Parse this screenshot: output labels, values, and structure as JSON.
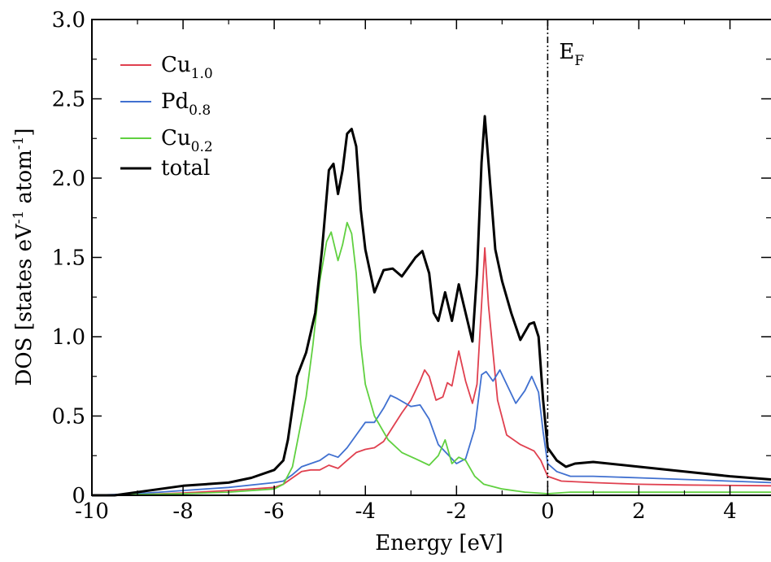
{
  "chart_data": {
    "type": "line",
    "xlabel": "Energy [eV]",
    "ylabel": {
      "main": "DOS [states eV",
      "sup1": "-1",
      "mid": " atom",
      "sup2": "-1",
      "end": "]"
    },
    "xlim": [
      -10,
      4.9
    ],
    "ylim": [
      0,
      3.0
    ],
    "x_ticks": [
      -10,
      -8,
      -6,
      -4,
      -2,
      0,
      2,
      4
    ],
    "x_tick_labels": [
      "-10",
      "-8",
      "-6",
      "-4",
      "-2",
      "0",
      "2",
      "4"
    ],
    "y_ticks": [
      0,
      0.5,
      1.0,
      1.5,
      2.0,
      2.5,
      3.0
    ],
    "y_tick_labels": [
      "0",
      "0.5",
      "1.0",
      "1.5",
      "2.0",
      "2.5",
      "3.0"
    ],
    "legend_position": "top-left",
    "fermi_level": {
      "x": 0,
      "label_main": "E",
      "label_sub": "F"
    },
    "series": [
      {
        "name": "Cu1.0",
        "label_main": "Cu",
        "label_sub": "1.0",
        "color": "#e0404f",
        "points": [
          [
            -10,
            0
          ],
          [
            -9,
            0.005
          ],
          [
            -8,
            0.015
          ],
          [
            -7,
            0.03
          ],
          [
            -6,
            0.05
          ],
          [
            -5.8,
            0.07
          ],
          [
            -5.6,
            0.11
          ],
          [
            -5.4,
            0.15
          ],
          [
            -5.2,
            0.16
          ],
          [
            -5.0,
            0.16
          ],
          [
            -4.8,
            0.19
          ],
          [
            -4.6,
            0.17
          ],
          [
            -4.4,
            0.22
          ],
          [
            -4.2,
            0.27
          ],
          [
            -4.0,
            0.29
          ],
          [
            -3.8,
            0.3
          ],
          [
            -3.6,
            0.34
          ],
          [
            -3.4,
            0.43
          ],
          [
            -3.2,
            0.52
          ],
          [
            -3.0,
            0.6
          ],
          [
            -2.8,
            0.72
          ],
          [
            -2.7,
            0.79
          ],
          [
            -2.6,
            0.75
          ],
          [
            -2.45,
            0.6
          ],
          [
            -2.3,
            0.62
          ],
          [
            -2.2,
            0.71
          ],
          [
            -2.1,
            0.69
          ],
          [
            -1.95,
            0.91
          ],
          [
            -1.8,
            0.72
          ],
          [
            -1.65,
            0.58
          ],
          [
            -1.55,
            0.7
          ],
          [
            -1.45,
            1.2
          ],
          [
            -1.38,
            1.56
          ],
          [
            -1.3,
            1.2
          ],
          [
            -1.1,
            0.6
          ],
          [
            -0.9,
            0.38
          ],
          [
            -0.6,
            0.32
          ],
          [
            -0.3,
            0.28
          ],
          [
            -0.15,
            0.22
          ],
          [
            0,
            0.12
          ],
          [
            0.3,
            0.09
          ],
          [
            1,
            0.08
          ],
          [
            2,
            0.07
          ],
          [
            3,
            0.065
          ],
          [
            4.9,
            0.06
          ]
        ]
      },
      {
        "name": "Pd0.8",
        "label_main": "Pd",
        "label_sub": "0.8",
        "color": "#4070d0",
        "points": [
          [
            -10,
            0
          ],
          [
            -9,
            0.01
          ],
          [
            -8,
            0.03
          ],
          [
            -7,
            0.05
          ],
          [
            -6,
            0.08
          ],
          [
            -5.8,
            0.09
          ],
          [
            -5.6,
            0.13
          ],
          [
            -5.4,
            0.18
          ],
          [
            -5.2,
            0.2
          ],
          [
            -5.0,
            0.22
          ],
          [
            -4.8,
            0.26
          ],
          [
            -4.6,
            0.24
          ],
          [
            -4.4,
            0.3
          ],
          [
            -4.2,
            0.38
          ],
          [
            -4.0,
            0.46
          ],
          [
            -3.8,
            0.46
          ],
          [
            -3.6,
            0.55
          ],
          [
            -3.45,
            0.63
          ],
          [
            -3.3,
            0.61
          ],
          [
            -3.0,
            0.56
          ],
          [
            -2.8,
            0.57
          ],
          [
            -2.6,
            0.48
          ],
          [
            -2.4,
            0.32
          ],
          [
            -2.2,
            0.26
          ],
          [
            -2.0,
            0.2
          ],
          [
            -1.8,
            0.23
          ],
          [
            -1.6,
            0.42
          ],
          [
            -1.45,
            0.76
          ],
          [
            -1.35,
            0.78
          ],
          [
            -1.2,
            0.72
          ],
          [
            -1.05,
            0.79
          ],
          [
            -0.9,
            0.7
          ],
          [
            -0.7,
            0.58
          ],
          [
            -0.5,
            0.66
          ],
          [
            -0.35,
            0.75
          ],
          [
            -0.2,
            0.65
          ],
          [
            -0.1,
            0.4
          ],
          [
            0,
            0.2
          ],
          [
            0.2,
            0.15
          ],
          [
            0.5,
            0.12
          ],
          [
            1,
            0.12
          ],
          [
            2,
            0.11
          ],
          [
            3,
            0.1
          ],
          [
            4.9,
            0.08
          ]
        ]
      },
      {
        "name": "Cu0.2",
        "label_main": "Cu",
        "label_sub": "0.2",
        "color": "#60d040",
        "points": [
          [
            -10,
            0
          ],
          [
            -9,
            0.005
          ],
          [
            -8,
            0.01
          ],
          [
            -7,
            0.02
          ],
          [
            -6,
            0.04
          ],
          [
            -5.8,
            0.07
          ],
          [
            -5.6,
            0.18
          ],
          [
            -5.45,
            0.4
          ],
          [
            -5.3,
            0.62
          ],
          [
            -5.15,
            0.95
          ],
          [
            -5.0,
            1.35
          ],
          [
            -4.85,
            1.6
          ],
          [
            -4.75,
            1.66
          ],
          [
            -4.6,
            1.48
          ],
          [
            -4.5,
            1.58
          ],
          [
            -4.4,
            1.72
          ],
          [
            -4.3,
            1.65
          ],
          [
            -4.2,
            1.4
          ],
          [
            -4.1,
            0.95
          ],
          [
            -4.0,
            0.7
          ],
          [
            -3.8,
            0.5
          ],
          [
            -3.5,
            0.35
          ],
          [
            -3.2,
            0.27
          ],
          [
            -2.9,
            0.23
          ],
          [
            -2.6,
            0.19
          ],
          [
            -2.4,
            0.25
          ],
          [
            -2.25,
            0.35
          ],
          [
            -2.1,
            0.2
          ],
          [
            -1.95,
            0.24
          ],
          [
            -1.8,
            0.22
          ],
          [
            -1.6,
            0.12
          ],
          [
            -1.4,
            0.07
          ],
          [
            -1.0,
            0.04
          ],
          [
            -0.5,
            0.02
          ],
          [
            0,
            0.01
          ],
          [
            0.5,
            0.02
          ],
          [
            1,
            0.02
          ],
          [
            2,
            0.02
          ],
          [
            3,
            0.02
          ],
          [
            4.9,
            0.02
          ]
        ]
      },
      {
        "name": "total",
        "label_main": "total",
        "label_sub": "",
        "color": "#000000",
        "points": [
          [
            -10,
            0
          ],
          [
            -9.5,
            0
          ],
          [
            -9,
            0.02
          ],
          [
            -8.5,
            0.04
          ],
          [
            -8,
            0.06
          ],
          [
            -7,
            0.08
          ],
          [
            -6.5,
            0.11
          ],
          [
            -6,
            0.16
          ],
          [
            -5.8,
            0.22
          ],
          [
            -5.7,
            0.35
          ],
          [
            -5.6,
            0.55
          ],
          [
            -5.5,
            0.75
          ],
          [
            -5.3,
            0.9
          ],
          [
            -5.1,
            1.15
          ],
          [
            -4.95,
            1.55
          ],
          [
            -4.8,
            2.05
          ],
          [
            -4.7,
            2.09
          ],
          [
            -4.6,
            1.9
          ],
          [
            -4.5,
            2.05
          ],
          [
            -4.4,
            2.28
          ],
          [
            -4.3,
            2.31
          ],
          [
            -4.2,
            2.2
          ],
          [
            -4.1,
            1.8
          ],
          [
            -4.0,
            1.55
          ],
          [
            -3.8,
            1.28
          ],
          [
            -3.6,
            1.42
          ],
          [
            -3.4,
            1.43
          ],
          [
            -3.2,
            1.38
          ],
          [
            -2.9,
            1.5
          ],
          [
            -2.75,
            1.54
          ],
          [
            -2.6,
            1.4
          ],
          [
            -2.5,
            1.15
          ],
          [
            -2.4,
            1.1
          ],
          [
            -2.25,
            1.28
          ],
          [
            -2.1,
            1.1
          ],
          [
            -1.95,
            1.33
          ],
          [
            -1.8,
            1.15
          ],
          [
            -1.65,
            0.97
          ],
          [
            -1.55,
            1.4
          ],
          [
            -1.45,
            2.1
          ],
          [
            -1.38,
            2.39
          ],
          [
            -1.3,
            2.1
          ],
          [
            -1.15,
            1.55
          ],
          [
            -1.0,
            1.35
          ],
          [
            -0.8,
            1.15
          ],
          [
            -0.6,
            0.98
          ],
          [
            -0.4,
            1.08
          ],
          [
            -0.3,
            1.09
          ],
          [
            -0.2,
            1.0
          ],
          [
            -0.1,
            0.6
          ],
          [
            0,
            0.3
          ],
          [
            0.2,
            0.22
          ],
          [
            0.4,
            0.18
          ],
          [
            0.6,
            0.2
          ],
          [
            1,
            0.21
          ],
          [
            2,
            0.18
          ],
          [
            3,
            0.15
          ],
          [
            4,
            0.12
          ],
          [
            4.9,
            0.1
          ]
        ]
      }
    ]
  }
}
